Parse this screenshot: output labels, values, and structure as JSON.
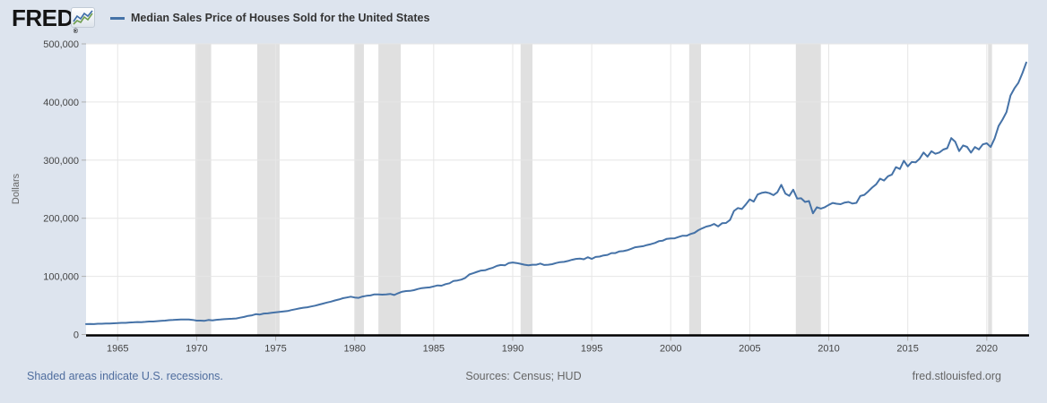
{
  "header": {
    "logo_text": "FRED",
    "logo_registered_mark": "®",
    "legend_label": "Median Sales Price of Houses Sold for the United States"
  },
  "footer": {
    "recession_note": "Shaded areas indicate U.S. recessions.",
    "sources": "Sources: Census; HUD",
    "site": "fred.stlouisfed.org"
  },
  "colors": {
    "background": "#dde4ee",
    "plot_background": "#ffffff",
    "series_line": "#4572a7",
    "recession_band": "#e0e0e0",
    "gridline": "#e6e6e6",
    "axis_line": "#000000",
    "tick_mark": "#b0b0b0",
    "tick_text": "#444444",
    "title_text": "#333333",
    "link_text": "#4f6d9e",
    "muted_text": "#666666",
    "logo_icon_blue": "#3c6ca8",
    "logo_icon_green": "#6f9e4f"
  },
  "chart_data": {
    "type": "line",
    "title": "Median Sales Price of Houses Sold for the United States",
    "ylabel": "Dollars",
    "xlabel": "",
    "grid": true,
    "legend_position": "top-left",
    "xlim": [
      1963,
      2022.62
    ],
    "ylim": [
      0,
      500000
    ],
    "x_ticks": [
      1965,
      1970,
      1975,
      1980,
      1985,
      1990,
      1995,
      2000,
      2005,
      2010,
      2015,
      2020
    ],
    "y_ticks": [
      0,
      100000,
      200000,
      300000,
      400000,
      500000
    ],
    "y_tick_labels": [
      "0",
      "100,000",
      "200,000",
      "300,000",
      "400,000",
      "500,000"
    ],
    "recessions": [
      [
        1969.917,
        1970.917
      ],
      [
        1973.833,
        1975.25
      ],
      [
        1980.0,
        1980.583
      ],
      [
        1981.5,
        1982.917
      ],
      [
        1990.5,
        1991.25
      ],
      [
        2001.167,
        2001.917
      ],
      [
        2007.917,
        2009.5
      ],
      [
        2020.083,
        2020.333
      ]
    ],
    "series": [
      {
        "name": "Median Sales Price of Houses Sold for the United States",
        "frequency": "quarterly",
        "start_year": 1963,
        "step_years": 0.25,
        "values": [
          17800,
          18000,
          17900,
          18500,
          18500,
          18900,
          18900,
          19300,
          19600,
          20000,
          20100,
          20600,
          21000,
          21400,
          21300,
          21700,
          22400,
          22400,
          22900,
          23400,
          23900,
          24700,
          24900,
          25400,
          25700,
          25800,
          25900,
          25100,
          23900,
          23900,
          23600,
          24900,
          24300,
          25300,
          25700,
          26300,
          26800,
          27100,
          27600,
          29000,
          30200,
          32100,
          32900,
          34900,
          34400,
          36100,
          36300,
          37300,
          38100,
          38900,
          39600,
          40400,
          42000,
          43500,
          44800,
          46000,
          46800,
          48300,
          49600,
          51400,
          53100,
          55000,
          56600,
          58500,
          60200,
          62400,
          63700,
          65000,
          63700,
          63000,
          65400,
          66600,
          67200,
          69000,
          69000,
          68600,
          68900,
          69800,
          68000,
          71100,
          73600,
          74700,
          75000,
          76300,
          78300,
          79800,
          80500,
          81100,
          82800,
          84500,
          83900,
          86600,
          88100,
          92200,
          92900,
          94500,
          97400,
          103200,
          105400,
          107800,
          110000,
          110500,
          113000,
          115000,
          118000,
          119500,
          119000,
          123000,
          123900,
          122900,
          121500,
          120000,
          119000,
          120000,
          120000,
          122000,
          119500,
          120000,
          121000,
          123000,
          124500,
          125000,
          126500,
          128500,
          130000,
          130500,
          129500,
          133000,
          130000,
          133500,
          134000,
          136000,
          137000,
          140000,
          140000,
          143000,
          143500,
          145000,
          147500,
          150000,
          151000,
          152000,
          154000,
          155500,
          157500,
          160500,
          161500,
          164500,
          165300,
          165500,
          167800,
          170000,
          169800,
          172900,
          174900,
          179500,
          182800,
          185600,
          187200,
          190200,
          186000,
          191400,
          191900,
          197000,
          212700,
          217600,
          215900,
          223700,
          232500,
          228700,
          240900,
          243600,
          244900,
          243200,
          239800,
          244700,
          257400,
          242500,
          238500,
          249100,
          233900,
          234300,
          228000,
          229600,
          208400,
          219000,
          216700,
          219000,
          222900,
          226300,
          225000,
          224200,
          226900,
          228100,
          225300,
          226500,
          238400,
          240200,
          246200,
          252800,
          258400,
          268100,
          264800,
          272300,
          275200,
          288000,
          284800,
          298900,
          289200,
          296700,
          296300,
          302500,
          313100,
          306000,
          315200,
          310900,
          313100,
          318200,
          320500,
          337900,
          331800,
          315600,
          325200,
          322800,
          313000,
          322500,
          318400,
          327100,
          329000,
          322600,
          337300,
          358700,
          369800,
          382600,
          411200,
          423600,
          433100,
          449300,
          468000
        ]
      }
    ]
  }
}
